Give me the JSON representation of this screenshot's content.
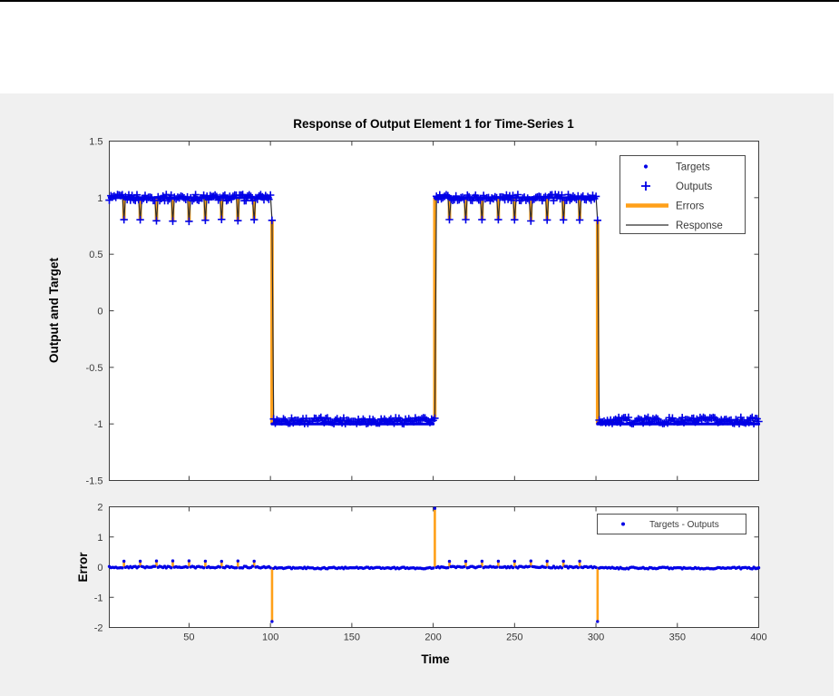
{
  "figure": {
    "top_border_color": "#000000",
    "background": "#f0f0f0",
    "page_background": "#ffffff"
  },
  "colors": {
    "targets_blue": "#0000e6",
    "outputs_blue": "#0000e6",
    "errors_orange": "#ffa019",
    "response_dark": "#2e2e2e",
    "axis": "#3f3f3f",
    "text": "#3a3a3a",
    "plot_background": "#ffffff",
    "legend_background": "#ffffff",
    "legend_border": "#4d4d4d"
  },
  "chart_data": [
    {
      "type": "line",
      "title": "Response of Output Element 1 for Time-Series 1",
      "ylabel": "Output and Target",
      "xlim": [
        1,
        400
      ],
      "ylim": [
        -1.5,
        1.5
      ],
      "yticks": [
        1.5,
        1,
        0.5,
        0,
        -0.5,
        -1,
        -1.5
      ],
      "xticks": [
        50,
        100,
        150,
        200,
        250,
        300,
        350,
        400
      ],
      "xtick_labels_visible": false,
      "grid": false,
      "legend": {
        "position": "upper right",
        "entries": [
          {
            "label": "Targets",
            "marker": "dot",
            "color": "#0000e6"
          },
          {
            "label": "Outputs",
            "marker": "plus",
            "color": "#0000e6"
          },
          {
            "label": "Errors",
            "marker": "thick-line",
            "color": "#ffa019"
          },
          {
            "label": "Response",
            "marker": "thin-line",
            "color": "#2e2e2e"
          }
        ]
      },
      "series": {
        "targets": {
          "description": "square wave between +1 and -1, period 200 samples",
          "segments": [
            {
              "t_start": 1,
              "t_end": 100,
              "value": 1
            },
            {
              "t_start": 101,
              "t_end": 200,
              "value": -1
            },
            {
              "t_start": 201,
              "t_end": 300,
              "value": 1
            },
            {
              "t_start": 301,
              "t_end": 400,
              "value": -1
            }
          ]
        },
        "outputs": {
          "description": "tracks targets with small noise; periodic dips to 0.8 during +1 phases; one-step lag at phase transitions",
          "dip_times": [
            10,
            20,
            30,
            40,
            50,
            60,
            70,
            80,
            90,
            210,
            220,
            230,
            240,
            250,
            260,
            270,
            280,
            290
          ],
          "dip_value": 0.8,
          "transition_points": [
            {
              "t": 101,
              "value": 0.8
            },
            {
              "t": 201,
              "value": -0.95
            },
            {
              "t": 301,
              "value": 0.8
            }
          ],
          "noise_amplitude": 0.028,
          "low_phase_bias": 0.03
        },
        "errors": {
          "description": "targets minus outputs, drawn as vertical orange lines",
          "dip_error_value": 0.2,
          "peak_values": [
            {
              "t": 101,
              "value": -1.8
            },
            {
              "t": 201,
              "value": 1.95
            },
            {
              "t": 301,
              "value": -1.8
            }
          ]
        }
      }
    },
    {
      "type": "stem",
      "ylabel": "Error",
      "xlabel": "Time",
      "xlim": [
        1,
        400
      ],
      "ylim": [
        -2,
        2
      ],
      "yticks": [
        2,
        1,
        0,
        -1,
        -2
      ],
      "xticks": [
        50,
        100,
        150,
        200,
        250,
        300,
        350,
        400
      ],
      "grid": false,
      "legend": {
        "position": "upper right",
        "entries": [
          {
            "label": "Targets - Outputs",
            "marker": "dot",
            "color": "#0000e6"
          }
        ]
      },
      "series_note": "error = targets - outputs of the response plot above; baseline near 0 with +0.2 bumps every 10 samples in +1 phases and spikes of -1.8 at t=101, +1.95 at t=201, -1.8 at t=301"
    }
  ]
}
